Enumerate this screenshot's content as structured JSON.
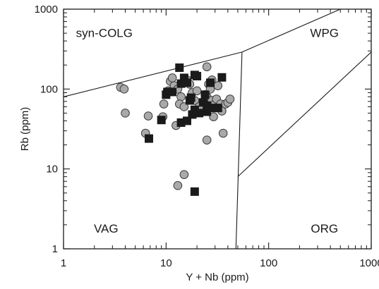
{
  "chart_data": {
    "type": "scatter",
    "xscale": "log",
    "yscale": "log",
    "xlim": [
      1,
      1000
    ],
    "ylim": [
      1,
      1000
    ],
    "xlabel": "Y + Nb  (ppm)",
    "ylabel": "Rb  (ppm)",
    "xticks": [
      "1",
      "10",
      "100",
      "1000"
    ],
    "yticks": [
      "1",
      "10",
      "100",
      "1000"
    ],
    "grid": false,
    "region_labels": [
      {
        "id": "syn-colg",
        "text": "syn-COLG",
        "x": 2.5,
        "y": 450
      },
      {
        "id": "wpg",
        "text": "WPG",
        "x": 350,
        "y": 450
      },
      {
        "id": "vag",
        "text": "VAG",
        "x": 2.6,
        "y": 1.6
      },
      {
        "id": "org",
        "text": "ORG",
        "x": 350,
        "y": 1.6
      }
    ],
    "boundaries": [
      {
        "id": "syn-colg-vag-boundary",
        "points": [
          [
            1,
            80
          ],
          [
            55,
            290
          ]
        ]
      },
      {
        "id": "syn-colg-wpg-boundary",
        "points": [
          [
            55,
            290
          ],
          [
            500,
            1000
          ]
        ]
      },
      {
        "id": "vag-wpg-boundary",
        "points": [
          [
            55,
            290
          ],
          [
            48,
            1
          ]
        ]
      },
      {
        "id": "wpg-org-boundary",
        "points": [
          [
            50,
            8
          ],
          [
            1000,
            290
          ]
        ]
      }
    ],
    "series": [
      {
        "marker": "circle",
        "color": "#a9a9a9",
        "points": [
          [
            3.6,
            105
          ],
          [
            3.9,
            100
          ],
          [
            4.0,
            50
          ],
          [
            6.3,
            28
          ],
          [
            6.7,
            46
          ],
          [
            9.5,
            65
          ],
          [
            9.3,
            45
          ],
          [
            11,
            125
          ],
          [
            11.5,
            138
          ],
          [
            12,
            110
          ],
          [
            10.5,
            95
          ],
          [
            13,
            100
          ],
          [
            14,
            80
          ],
          [
            13.5,
            65
          ],
          [
            15,
            60
          ],
          [
            16,
            130
          ],
          [
            17,
            115
          ],
          [
            18,
            90
          ],
          [
            19,
            72
          ],
          [
            20,
            95
          ],
          [
            21,
            60
          ],
          [
            22,
            55
          ],
          [
            24,
            85
          ],
          [
            25,
            190
          ],
          [
            25,
            80
          ],
          [
            26,
            115
          ],
          [
            27,
            100
          ],
          [
            28,
            130
          ],
          [
            28,
            72
          ],
          [
            29,
            45
          ],
          [
            30,
            65
          ],
          [
            31,
            75
          ],
          [
            32,
            110
          ],
          [
            33,
            58
          ],
          [
            34,
            65
          ],
          [
            35,
            53
          ],
          [
            38,
            65
          ],
          [
            40,
            68
          ],
          [
            42,
            75
          ],
          [
            36,
            28
          ],
          [
            25,
            23
          ],
          [
            13,
            6.2
          ],
          [
            15,
            8.5
          ],
          [
            12.5,
            35
          ]
        ]
      },
      {
        "marker": "square",
        "color": "#1a1a1a",
        "points": [
          [
            6.8,
            24
          ],
          [
            9,
            41
          ],
          [
            10,
            85
          ],
          [
            10.3,
            92
          ],
          [
            11.5,
            92
          ],
          [
            13.5,
            185
          ],
          [
            14,
            117
          ],
          [
            15,
            138
          ],
          [
            16,
            120
          ],
          [
            17,
            72
          ],
          [
            17.5,
            78
          ],
          [
            18,
            48
          ],
          [
            19,
            55
          ],
          [
            19,
            150
          ],
          [
            20,
            145
          ],
          [
            21,
            50
          ],
          [
            23,
            68
          ],
          [
            24,
            85
          ],
          [
            25,
            62
          ],
          [
            25,
            52
          ],
          [
            27,
            120
          ],
          [
            29,
            58
          ],
          [
            32,
            58
          ],
          [
            35,
            140
          ],
          [
            14,
            38
          ],
          [
            16,
            40
          ],
          [
            19,
            5.2
          ]
        ]
      }
    ]
  }
}
